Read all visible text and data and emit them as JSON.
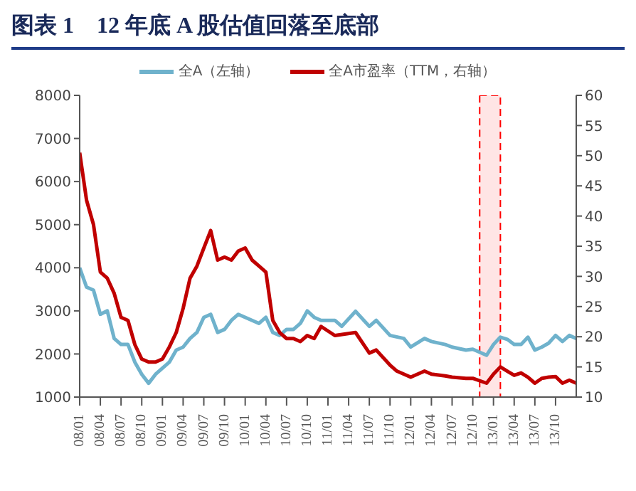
{
  "chart_data": {
    "type": "line",
    "title": "图表 1　12 年底 A 股估值回落至底部",
    "xlim": [
      "2008-01",
      "2014-01"
    ],
    "xticks": [
      {
        "value": "2008-01",
        "label": "08/01"
      },
      {
        "value": "2008-04",
        "label": "08/04"
      },
      {
        "value": "2008-07",
        "label": "08/07"
      },
      {
        "value": "2008-10",
        "label": "08/10"
      },
      {
        "value": "2009-01",
        "label": "09/01"
      },
      {
        "value": "2009-04",
        "label": "09/04"
      },
      {
        "value": "2009-07",
        "label": "09/07"
      },
      {
        "value": "2009-10",
        "label": "09/10"
      },
      {
        "value": "2010-01",
        "label": "10/01"
      },
      {
        "value": "2010-04",
        "label": "10/04"
      },
      {
        "value": "2010-07",
        "label": "10/07"
      },
      {
        "value": "2010-10",
        "label": "10/10"
      },
      {
        "value": "2011-01",
        "label": "11/01"
      },
      {
        "value": "2011-04",
        "label": "11/04"
      },
      {
        "value": "2011-07",
        "label": "11/07"
      },
      {
        "value": "2011-10",
        "label": "11/10"
      },
      {
        "value": "2012-01",
        "label": "12/01"
      },
      {
        "value": "2012-04",
        "label": "12/04"
      },
      {
        "value": "2012-07",
        "label": "12/07"
      },
      {
        "value": "2012-10",
        "label": "12/10"
      },
      {
        "value": "2013-01",
        "label": "13/01"
      },
      {
        "value": "2013-04",
        "label": "13/04"
      },
      {
        "value": "2013-07",
        "label": "13/07"
      },
      {
        "value": "2013-10",
        "label": "13/10"
      }
    ],
    "ylim": [
      1000,
      8000
    ],
    "yticks": [
      1000,
      2000,
      3000,
      4000,
      5000,
      6000,
      7000,
      8000
    ],
    "y2lim": [
      10,
      60
    ],
    "y2ticks": [
      10,
      15,
      20,
      25,
      30,
      35,
      40,
      45,
      50,
      55,
      60
    ],
    "grid": false,
    "legend": "top",
    "marker": "none",
    "line_style": "solid",
    "bands": [
      {
        "axis": "x",
        "from": "2012-11",
        "to": "2013-02",
        "color": "#ff0000"
      }
    ],
    "series": [
      {
        "name": "全A（左轴）",
        "color": "#6fb2cc",
        "x": [
          "2008-01",
          "2008-02",
          "2008-03",
          "2008-04",
          "2008-05",
          "2008-06",
          "2008-07",
          "2008-08",
          "2008-09",
          "2008-10",
          "2008-11",
          "2008-12",
          "2009-01",
          "2009-02",
          "2009-03",
          "2009-04",
          "2009-05",
          "2009-06",
          "2009-07",
          "2009-08",
          "2009-09",
          "2009-10",
          "2009-11",
          "2009-12",
          "2010-01",
          "2010-02",
          "2010-03",
          "2010-04",
          "2010-05",
          "2010-06",
          "2010-07",
          "2010-08",
          "2010-09",
          "2010-10",
          "2010-11",
          "2010-12",
          "2011-02",
          "2011-03",
          "2011-05",
          "2011-07",
          "2011-08",
          "2011-10",
          "2011-12",
          "2012-01",
          "2012-03",
          "2012-04",
          "2012-06",
          "2012-07",
          "2012-09",
          "2012-10",
          "2012-12",
          "2013-01",
          "2013-02",
          "2013-03",
          "2013-04",
          "2013-05",
          "2013-06",
          "2013-07",
          "2013-08",
          "2013-09",
          "2013-10",
          "2013-11",
          "2013-12",
          "2014-01"
        ],
        "values": [
          4000,
          3550,
          3480,
          2920,
          3000,
          2360,
          2220,
          2220,
          1810,
          1530,
          1320,
          1530,
          1670,
          1810,
          2090,
          2160,
          2360,
          2500,
          2850,
          2920,
          2500,
          2570,
          2780,
          2920,
          2850,
          2780,
          2710,
          2850,
          2500,
          2430,
          2570,
          2570,
          2710,
          3000,
          2850,
          2780,
          2780,
          2640,
          2990,
          2640,
          2780,
          2430,
          2360,
          2160,
          2360,
          2290,
          2220,
          2160,
          2090,
          2110,
          1970,
          2220,
          2390,
          2340,
          2220,
          2220,
          2390,
          2090,
          2160,
          2250,
          2430,
          2290,
          2430,
          2360
        ]
      },
      {
        "name": "全A市盈率（TTM，右轴）",
        "color": "#c00000",
        "axis": "y2",
        "x": [
          "2008-01",
          "2008-02",
          "2008-03",
          "2008-04",
          "2008-05",
          "2008-06",
          "2008-07",
          "2008-08",
          "2008-09",
          "2008-10",
          "2008-11",
          "2008-12",
          "2009-01",
          "2009-02",
          "2009-03",
          "2009-04",
          "2009-05",
          "2009-06",
          "2009-07",
          "2009-08",
          "2009-09",
          "2009-10",
          "2009-11",
          "2009-12",
          "2010-01",
          "2010-02",
          "2010-03",
          "2010-04",
          "2010-05",
          "2010-06",
          "2010-07",
          "2010-08",
          "2010-09",
          "2010-10",
          "2010-11",
          "2010-12",
          "2011-02",
          "2011-05",
          "2011-07",
          "2011-08",
          "2011-10",
          "2011-11",
          "2012-01",
          "2012-03",
          "2012-04",
          "2012-06",
          "2012-07",
          "2012-09",
          "2012-10",
          "2012-12",
          "2013-01",
          "2013-02",
          "2013-03",
          "2013-04",
          "2013-05",
          "2013-06",
          "2013-07",
          "2013-08",
          "2013-09",
          "2013-10",
          "2013-11",
          "2013-12",
          "2014-01"
        ],
        "values": [
          50.5,
          42.6,
          38.6,
          30.7,
          29.7,
          27.2,
          23.2,
          22.7,
          18.7,
          16.3,
          15.8,
          15.8,
          16.3,
          18.3,
          20.7,
          24.7,
          29.7,
          31.7,
          34.7,
          37.6,
          32.7,
          33.2,
          32.7,
          34.2,
          34.7,
          32.7,
          31.7,
          30.7,
          22.7,
          20.7,
          19.7,
          19.7,
          19.2,
          20.2,
          19.7,
          21.7,
          20.2,
          20.7,
          17.3,
          17.8,
          15.3,
          14.3,
          13.3,
          14.3,
          13.8,
          13.5,
          13.3,
          13.1,
          13.1,
          12.3,
          13.8,
          15.0,
          14.3,
          13.6,
          14.0,
          13.3,
          12.3,
          13.1,
          13.3,
          13.4,
          12.3,
          12.8,
          12.3
        ]
      }
    ]
  }
}
